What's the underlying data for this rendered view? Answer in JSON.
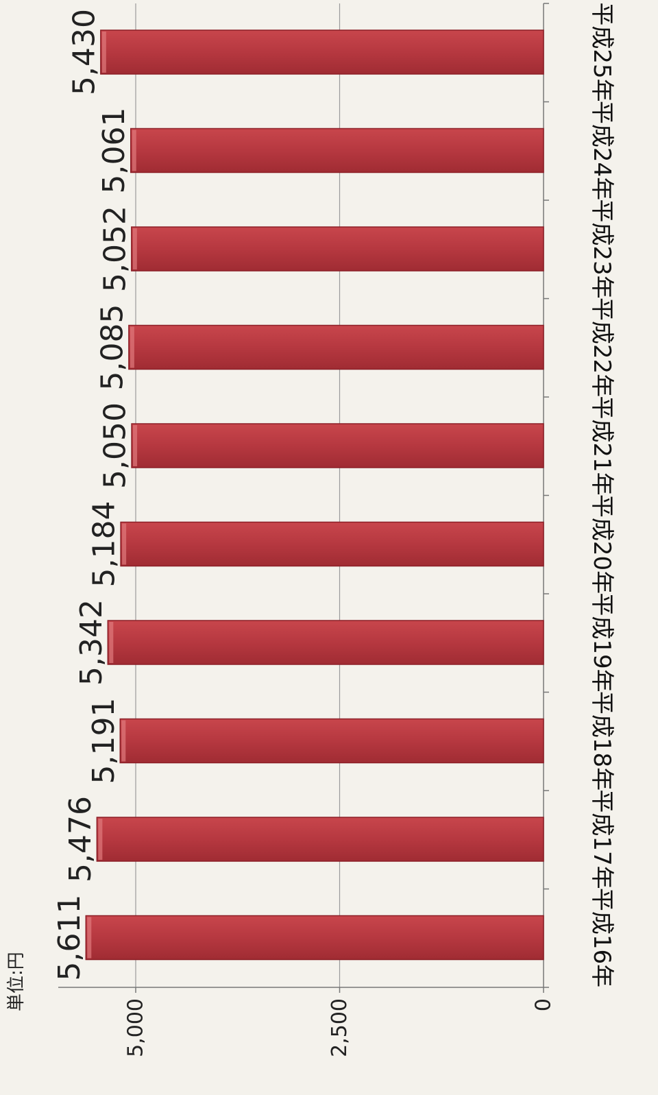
{
  "chart_data": {
    "type": "bar",
    "orientation": "horizontal",
    "unit_label": "単位:円",
    "categories": [
      "平成16年",
      "平成17年",
      "平成18年",
      "平成19年",
      "平成20年",
      "平成21年",
      "平成22年",
      "平成23年",
      "平成24年",
      "平成25年"
    ],
    "values": [
      5611,
      5476,
      5191,
      5342,
      5184,
      5050,
      5085,
      5052,
      5061,
      5430
    ],
    "value_labels": [
      "5,611",
      "5,476",
      "5,191",
      "5,342",
      "5,184",
      "5,050",
      "5,085",
      "5,052",
      "5,061",
      "5,430"
    ],
    "tick_labels": [
      "0",
      "2,500",
      "5,000"
    ],
    "ticks": [
      0,
      2500,
      5000
    ],
    "xlim": [
      0,
      6000
    ],
    "grid": true,
    "bar_color": "#b0323a",
    "bar_edge_color": "#8c1f27",
    "grid_color": "#9a9a9a"
  }
}
